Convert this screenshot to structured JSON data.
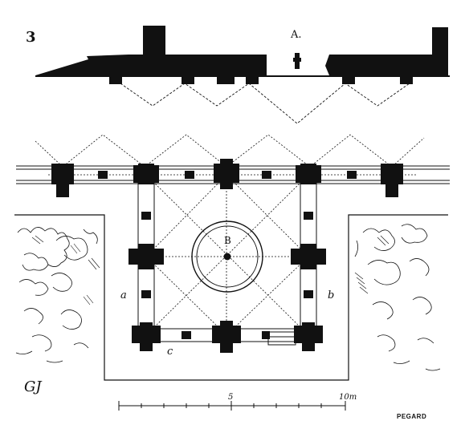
{
  "figure": {
    "number": "3",
    "section_label": "A.",
    "center_label": "B",
    "side_label_left": "a",
    "side_label_right": "b",
    "bottom_label": "c",
    "scale_mid_label": "5",
    "scale_end_label": "10m",
    "signature": "PEGARD",
    "monogram": "GJ"
  },
  "colors": {
    "ink": "#111111",
    "paper": "#ffffff"
  }
}
